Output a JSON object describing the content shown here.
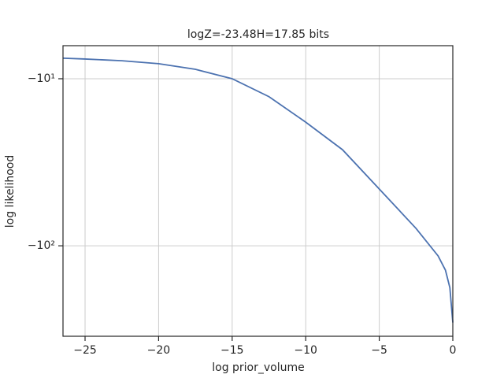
{
  "chart_data": {
    "type": "line",
    "title": "logZ=-23.48H=17.85 bits",
    "xlabel": "log prior_volume",
    "ylabel": "log likelihood",
    "yscale": "log",
    "grid": true,
    "x": [
      -26.5,
      -25,
      -22.5,
      -20,
      -17.5,
      -15,
      -12.5,
      -10,
      -7.5,
      -5,
      -2.5,
      -1,
      -0.5,
      -0.2,
      0
    ],
    "series": [
      {
        "name": "log likelihood",
        "color": "#4c72b0",
        "values": [
          -7.53,
          -7.62,
          -7.8,
          -8.13,
          -8.78,
          -10,
          -12.8,
          -18.2,
          -26.6,
          -45.7,
          -78.7,
          -115,
          -140,
          -178,
          -288
        ]
      }
    ],
    "xlim": [
      -26.5,
      0
    ],
    "xticks": [
      {
        "value": -25,
        "label": "−25"
      },
      {
        "value": -20,
        "label": "−20"
      },
      {
        "value": -15,
        "label": "−15"
      },
      {
        "value": -10,
        "label": "−10"
      },
      {
        "value": -5,
        "label": "−5"
      },
      0
    ],
    "ylim": [
      -348,
      -6.34
    ],
    "yticks": [
      {
        "value": -10,
        "label": "−10¹"
      },
      {
        "value": -100,
        "label": "−10²"
      }
    ]
  }
}
